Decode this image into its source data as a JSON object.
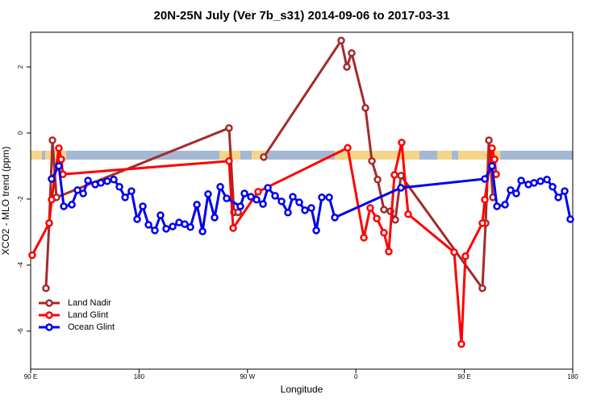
{
  "chart_data": {
    "type": "line",
    "title": "20N-25N July (Ver 7b_s31)   2014-09-06 to 2017-03-31",
    "x_label": "Longitude",
    "y_label": "XCO2 - MLO trend (ppm)",
    "xlim": [
      90,
      540
    ],
    "ylim": [
      -7.15,
      3.05
    ],
    "xticks": [
      {
        "value": 90,
        "label": "90 E"
      },
      180,
      {
        "value": 270,
        "label": "90 W"
      },
      {
        "value": 360,
        "label": "0"
      },
      {
        "value": 450,
        "label": "90 E"
      },
      {
        "value": 540,
        "label": "180"
      }
    ],
    "yticks": [
      -6,
      -4,
      -2,
      0,
      2
    ],
    "legend": "bottom-left",
    "series": [
      {
        "name": "Land Nadir",
        "color": "#a52a2a",
        "x": [
          102.7,
          105.4,
          108.1,
          111.4,
          254.7,
          258.8,
          262.2,
          277.5,
          283.5,
          347.8,
          352.5,
          356.5,
          367.9,
          373.3,
          378.0,
          383.3,
          388.7,
          392.7,
          397.4,
          465.0,
          467.7,
          470.4,
          473.7
        ],
        "values": [
          -4.7,
          -2.73,
          -0.22,
          -1.95,
          0.15,
          -2.4,
          -2.4,
          null,
          -0.73,
          2.8,
          2.0,
          2.42,
          0.76,
          -0.85,
          -1.41,
          -2.32,
          -2.37,
          -2.63,
          -1.29,
          -4.7,
          -2.73,
          -0.22,
          -1.95
        ]
      },
      {
        "name": "Land Glint",
        "color": "#ff0000",
        "x": [
          91.3,
          105.4,
          107.4,
          113.4,
          115.4,
          116.8,
          254.7,
          258.1,
          278.8,
          353.2,
          366.6,
          371.9,
          377.3,
          383.3,
          387.3,
          392.0,
          398.0,
          403.4,
          441.6,
          447.6,
          450.9,
          465.0,
          467.0,
          473.0,
          475.1,
          476.4
        ],
        "values": [
          -3.7,
          -2.73,
          -2.02,
          -0.46,
          -0.8,
          -1.25,
          -0.85,
          -2.88,
          -1.78,
          -0.45,
          -3.17,
          -2.27,
          -2.59,
          -3.02,
          -3.59,
          -1.27,
          -0.29,
          -2.46,
          -3.61,
          -6.39,
          -3.73,
          -2.73,
          -2.02,
          -0.46,
          -0.8,
          -1.25
        ]
      },
      {
        "name": "Ocean Glint",
        "color": "#0000ee",
        "x": [
          107.4,
          113.4,
          117.5,
          124.2,
          128.9,
          133.6,
          137.6,
          143.6,
          148.3,
          153.6,
          159.0,
          163.7,
          168.4,
          173.7,
          178.4,
          183.1,
          187.8,
          193.1,
          197.8,
          202.5,
          207.9,
          213.2,
          217.9,
          222.6,
          228.0,
          232.7,
          237.3,
          242.7,
          247.4,
          252.7,
          264.1,
          267.5,
          272.8,
          277.5,
          282.9,
          286.9,
          292.9,
          298.3,
          303.6,
          307.6,
          313.0,
          317.7,
          323.0,
          327.1,
          331.7,
          337.8,
          342.5,
          397.4,
          467.0,
          473.0,
          477.1,
          483.8,
          488.4,
          493.1,
          497.2,
          503.2,
          507.9,
          513.2,
          518.6,
          523.3,
          528.0,
          533.3,
          538.0
        ],
        "values": [
          -1.39,
          -1.0,
          -2.22,
          -2.17,
          -1.73,
          -1.83,
          -1.44,
          -1.56,
          -1.51,
          -1.46,
          -1.41,
          -1.63,
          -1.95,
          -1.76,
          -2.61,
          -2.22,
          -2.78,
          -2.95,
          -2.49,
          -2.9,
          -2.83,
          -2.71,
          -2.76,
          -2.85,
          -2.17,
          -2.98,
          -1.85,
          -2.56,
          -1.63,
          -1.98,
          -2.22,
          -1.83,
          -1.93,
          -2.02,
          -2.15,
          -1.66,
          -1.9,
          -2.07,
          -2.41,
          -1.93,
          -2.1,
          -2.34,
          -2.27,
          -2.95,
          -1.95,
          -1.95,
          -2.56,
          -1.66,
          -1.39,
          -1.0,
          -2.22,
          -2.17,
          -1.73,
          -1.83,
          -1.44,
          -1.56,
          -1.51,
          -1.46,
          -1.41,
          -1.63,
          -1.95,
          -1.76,
          -2.61
        ]
      }
    ]
  }
}
